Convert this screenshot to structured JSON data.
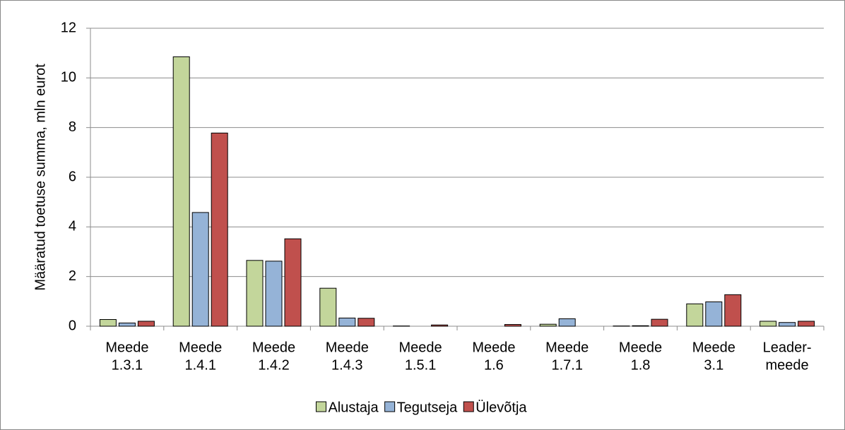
{
  "chart_data": {
    "type": "bar",
    "y_label": "Määratud toetuse summa, mln eurot",
    "categories": [
      [
        "Meede",
        "1.3.1"
      ],
      [
        "Meede",
        "1.4.1"
      ],
      [
        "Meede",
        "1.4.2"
      ],
      [
        "Meede",
        "1.4.3"
      ],
      [
        "Meede",
        "1.5.1"
      ],
      [
        "Meede",
        "1.6"
      ],
      [
        "Meede",
        "1.7.1"
      ],
      [
        "Meede",
        "1.8"
      ],
      [
        "Meede",
        "3.1"
      ],
      [
        "Leader-",
        "meede"
      ]
    ],
    "series": [
      {
        "name": "Alustaja",
        "color": "#c3d69b",
        "values": [
          0.27,
          10.85,
          2.65,
          1.53,
          0.01,
          0,
          0.08,
          0.01,
          0.9,
          0.2
        ]
      },
      {
        "name": "Tegutseja",
        "color": "#95b3d7",
        "values": [
          0.13,
          4.58,
          2.62,
          0.33,
          0,
          0,
          0.3,
          0.02,
          0.98,
          0.15
        ]
      },
      {
        "name": "Ülevõtja",
        "color": "#c0504d",
        "values": [
          0.2,
          7.78,
          3.52,
          0.32,
          0.05,
          0.07,
          0,
          0.28,
          1.27,
          0.2
        ]
      }
    ],
    "ylim": [
      0,
      12
    ],
    "yticks": [
      0,
      2,
      4,
      6,
      8,
      10,
      12
    ],
    "grid": true,
    "legend": "bottom"
  }
}
